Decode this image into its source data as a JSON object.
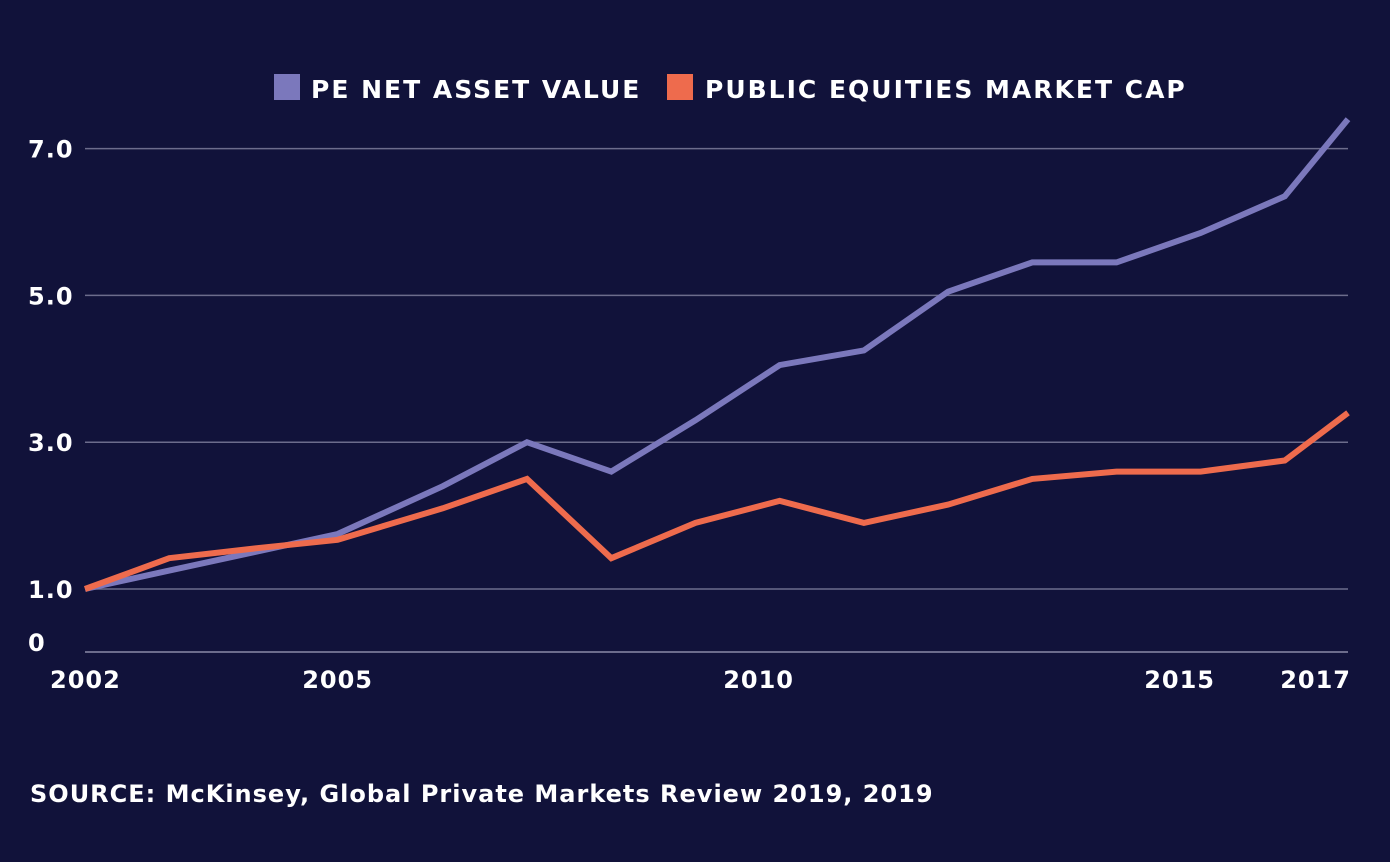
{
  "chart_data": {
    "type": "line",
    "title": "",
    "xlabel": "",
    "ylabel": "",
    "x_tick_labels": [
      "2002",
      "2005",
      "2010",
      "2015",
      "2017"
    ],
    "y_tick_labels": [
      "0",
      "1.0",
      "3.0",
      "5.0",
      "7.0"
    ],
    "x_ticks": [
      2002,
      2005,
      2010,
      2015,
      2017
    ],
    "y_ticks": [
      0,
      1,
      3,
      5,
      7
    ],
    "xlim": [
      2002,
      2017
    ],
    "ylim": [
      0,
      7.4
    ],
    "grid": "horizontal",
    "legend_position": "top-center",
    "series": [
      {
        "name": "PE NET ASSET VALUE",
        "color": "#7b78bc",
        "points": [
          [
            2002,
            1.0
          ],
          [
            2003,
            1.25
          ],
          [
            2004,
            1.5
          ],
          [
            2005,
            1.75
          ],
          [
            2006.25,
            2.4
          ],
          [
            2007.25,
            3.0
          ],
          [
            2008.25,
            2.6
          ],
          [
            2009.25,
            3.3
          ],
          [
            2010.25,
            4.05
          ],
          [
            2011.25,
            4.25
          ],
          [
            2012.25,
            5.05
          ],
          [
            2013.25,
            5.45
          ],
          [
            2014.25,
            5.45
          ],
          [
            2015.25,
            5.85
          ],
          [
            2016.25,
            6.35
          ],
          [
            2017,
            7.4
          ]
        ]
      },
      {
        "name": "PUBLIC EQUITIES MARKET CAP",
        "color": "#ee6b4d",
        "points": [
          [
            2002,
            1.0
          ],
          [
            2003,
            1.42
          ],
          [
            2004,
            1.55
          ],
          [
            2005,
            1.67
          ],
          [
            2006.25,
            2.1
          ],
          [
            2007.25,
            2.5
          ],
          [
            2008.25,
            1.42
          ],
          [
            2009.25,
            1.9
          ],
          [
            2010.25,
            2.2
          ],
          [
            2011.25,
            1.9
          ],
          [
            2012.25,
            2.15
          ],
          [
            2013.25,
            2.5
          ],
          [
            2014.25,
            2.6
          ],
          [
            2015.25,
            2.6
          ],
          [
            2016.25,
            2.75
          ],
          [
            2017,
            3.4
          ]
        ]
      }
    ]
  },
  "colors": {
    "background": "#11123a",
    "gridline": "#6c6c8c",
    "axis": "#8a8aa8",
    "text": "#ffffff"
  },
  "footer": {
    "source": "SOURCE: McKinsey, Global Private Markets Review 2019, 2019"
  }
}
